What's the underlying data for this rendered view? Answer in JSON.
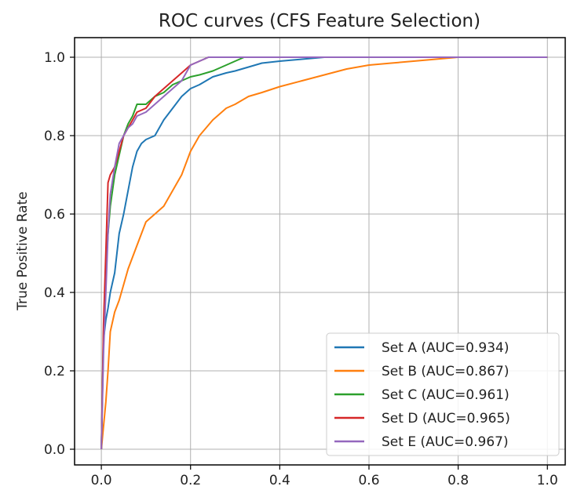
{
  "chart_data": {
    "type": "line",
    "title": "ROC curves (CFS Feature Selection)",
    "xlabel": "",
    "ylabel": "True Positive Rate",
    "xlim": [
      -0.06,
      1.04
    ],
    "ylim": [
      -0.04,
      1.05
    ],
    "xticks": [
      "0.0",
      "0.2",
      "0.4",
      "0.6",
      "0.8",
      "1.0"
    ],
    "yticks": [
      "0.0",
      "0.2",
      "0.4",
      "0.6",
      "0.8",
      "1.0"
    ],
    "grid": true,
    "legend_position": "bottom-right",
    "series": [
      {
        "name": "Set A (AUC=0.934)",
        "color": "#1f77b4",
        "x": [
          0,
          0.005,
          0.01,
          0.015,
          0.02,
          0.03,
          0.04,
          0.05,
          0.06,
          0.07,
          0.08,
          0.09,
          0.1,
          0.12,
          0.14,
          0.16,
          0.18,
          0.2,
          0.22,
          0.25,
          0.28,
          0.3,
          0.33,
          0.36,
          0.4,
          0.45,
          0.5,
          0.6,
          1.0
        ],
        "y": [
          0,
          0.28,
          0.33,
          0.36,
          0.4,
          0.45,
          0.55,
          0.6,
          0.66,
          0.72,
          0.76,
          0.78,
          0.79,
          0.8,
          0.84,
          0.87,
          0.9,
          0.92,
          0.93,
          0.95,
          0.96,
          0.965,
          0.975,
          0.985,
          0.99,
          0.995,
          1.0,
          1.0,
          1.0
        ]
      },
      {
        "name": "Set B (AUC=0.867)",
        "color": "#ff7f0e",
        "x": [
          0,
          0.01,
          0.015,
          0.02,
          0.03,
          0.04,
          0.05,
          0.06,
          0.08,
          0.1,
          0.12,
          0.14,
          0.16,
          0.18,
          0.2,
          0.22,
          0.25,
          0.28,
          0.3,
          0.33,
          0.36,
          0.4,
          0.45,
          0.5,
          0.55,
          0.6,
          0.65,
          0.7,
          0.75,
          0.8,
          1.0
        ],
        "y": [
          0,
          0.12,
          0.2,
          0.3,
          0.35,
          0.38,
          0.42,
          0.46,
          0.52,
          0.58,
          0.6,
          0.62,
          0.66,
          0.7,
          0.76,
          0.8,
          0.84,
          0.87,
          0.88,
          0.9,
          0.91,
          0.925,
          0.94,
          0.955,
          0.97,
          0.98,
          0.985,
          0.99,
          0.995,
          1.0,
          1.0
        ]
      },
      {
        "name": "Set C (AUC=0.961)",
        "color": "#2ca02c",
        "x": [
          0,
          0.005,
          0.01,
          0.015,
          0.02,
          0.03,
          0.04,
          0.05,
          0.06,
          0.07,
          0.08,
          0.09,
          0.1,
          0.12,
          0.14,
          0.16,
          0.18,
          0.2,
          0.22,
          0.25,
          0.28,
          0.3,
          0.32,
          0.4,
          1.0
        ],
        "y": [
          0,
          0.3,
          0.45,
          0.55,
          0.62,
          0.7,
          0.75,
          0.8,
          0.83,
          0.85,
          0.88,
          0.88,
          0.88,
          0.9,
          0.91,
          0.93,
          0.94,
          0.95,
          0.955,
          0.965,
          0.98,
          0.99,
          1.0,
          1.0,
          1.0
        ]
      },
      {
        "name": "Set D (AUC=0.965)",
        "color": "#d62728",
        "x": [
          0,
          0.005,
          0.01,
          0.015,
          0.02,
          0.03,
          0.04,
          0.05,
          0.06,
          0.07,
          0.08,
          0.1,
          0.12,
          0.14,
          0.16,
          0.18,
          0.2,
          0.22,
          0.24,
          0.26,
          0.3,
          1.0
        ],
        "y": [
          0,
          0.32,
          0.5,
          0.68,
          0.7,
          0.72,
          0.76,
          0.8,
          0.82,
          0.84,
          0.86,
          0.87,
          0.9,
          0.92,
          0.94,
          0.96,
          0.98,
          0.99,
          1.0,
          1.0,
          1.0,
          1.0
        ]
      },
      {
        "name": "Set E (AUC=0.967)",
        "color": "#9467bd",
        "x": [
          0,
          0.005,
          0.01,
          0.015,
          0.02,
          0.03,
          0.04,
          0.05,
          0.06,
          0.07,
          0.08,
          0.1,
          0.12,
          0.14,
          0.16,
          0.18,
          0.2,
          0.22,
          0.24,
          0.26,
          0.3,
          1.0
        ],
        "y": [
          0,
          0.25,
          0.4,
          0.55,
          0.65,
          0.72,
          0.78,
          0.8,
          0.82,
          0.83,
          0.85,
          0.86,
          0.88,
          0.9,
          0.92,
          0.94,
          0.98,
          0.99,
          1.0,
          1.0,
          1.0,
          1.0
        ]
      }
    ]
  }
}
